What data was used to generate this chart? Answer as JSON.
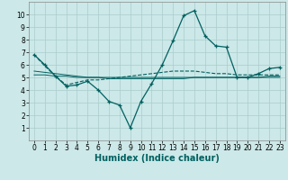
{
  "xlabel": "Humidex (Indice chaleur)",
  "xlim": [
    -0.5,
    23.5
  ],
  "ylim": [
    0,
    11
  ],
  "xticks": [
    0,
    1,
    2,
    3,
    4,
    5,
    6,
    7,
    8,
    9,
    10,
    11,
    12,
    13,
    14,
    15,
    16,
    17,
    18,
    19,
    20,
    21,
    22,
    23
  ],
  "yticks": [
    1,
    2,
    3,
    4,
    5,
    6,
    7,
    8,
    9,
    10
  ],
  "bg_color": "#cce8e8",
  "grid_color": "#aacccc",
  "line_color": "#006060",
  "line1_x": [
    0,
    1,
    2,
    3,
    4,
    5,
    6,
    7,
    8,
    9,
    10,
    11,
    12,
    13,
    14,
    15,
    16,
    17,
    18,
    19,
    20,
    21,
    22,
    23
  ],
  "line1_y": [
    6.8,
    6.0,
    5.1,
    4.3,
    4.4,
    4.7,
    4.0,
    3.1,
    2.8,
    1.0,
    3.1,
    4.5,
    6.0,
    7.9,
    9.9,
    10.3,
    8.3,
    7.5,
    7.4,
    5.0,
    5.0,
    5.3,
    5.7,
    5.8
  ],
  "line2_x": [
    0,
    1,
    2,
    3,
    4,
    5,
    6,
    7,
    8,
    9,
    10,
    11,
    12,
    13,
    14,
    15,
    16,
    17,
    18,
    19,
    20,
    21,
    22,
    23
  ],
  "line2_y": [
    6.8,
    5.9,
    5.1,
    4.4,
    4.6,
    4.8,
    4.8,
    4.9,
    5.0,
    5.1,
    5.2,
    5.3,
    5.4,
    5.5,
    5.5,
    5.5,
    5.4,
    5.3,
    5.3,
    5.2,
    5.2,
    5.2,
    5.2,
    5.2
  ],
  "line3_x": [
    0,
    1,
    2,
    3,
    4,
    5,
    6,
    7,
    8,
    9,
    10,
    11,
    12,
    13,
    14,
    15,
    16,
    17,
    18,
    19,
    20,
    21,
    22,
    23
  ],
  "line3_y": [
    5.5,
    5.4,
    5.3,
    5.2,
    5.1,
    5.0,
    5.0,
    5.0,
    5.0,
    5.0,
    5.0,
    5.0,
    5.0,
    5.0,
    5.0,
    5.0,
    5.0,
    5.0,
    5.0,
    5.0,
    5.0,
    5.0,
    5.0,
    5.0
  ],
  "line4_x": [
    0,
    1,
    2,
    3,
    4,
    5,
    6,
    7,
    8,
    9,
    10,
    11,
    12,
    13,
    14,
    15,
    16,
    17,
    18,
    19,
    20,
    21,
    22,
    23
  ],
  "line4_y": [
    5.2,
    5.2,
    5.1,
    5.1,
    5.0,
    5.0,
    5.0,
    4.9,
    4.9,
    4.9,
    4.9,
    4.9,
    4.9,
    4.9,
    4.9,
    5.0,
    5.0,
    5.0,
    5.0,
    5.0,
    5.0,
    5.0,
    5.1,
    5.1
  ],
  "tick_fontsize": 5.5,
  "xlabel_fontsize": 7.0
}
